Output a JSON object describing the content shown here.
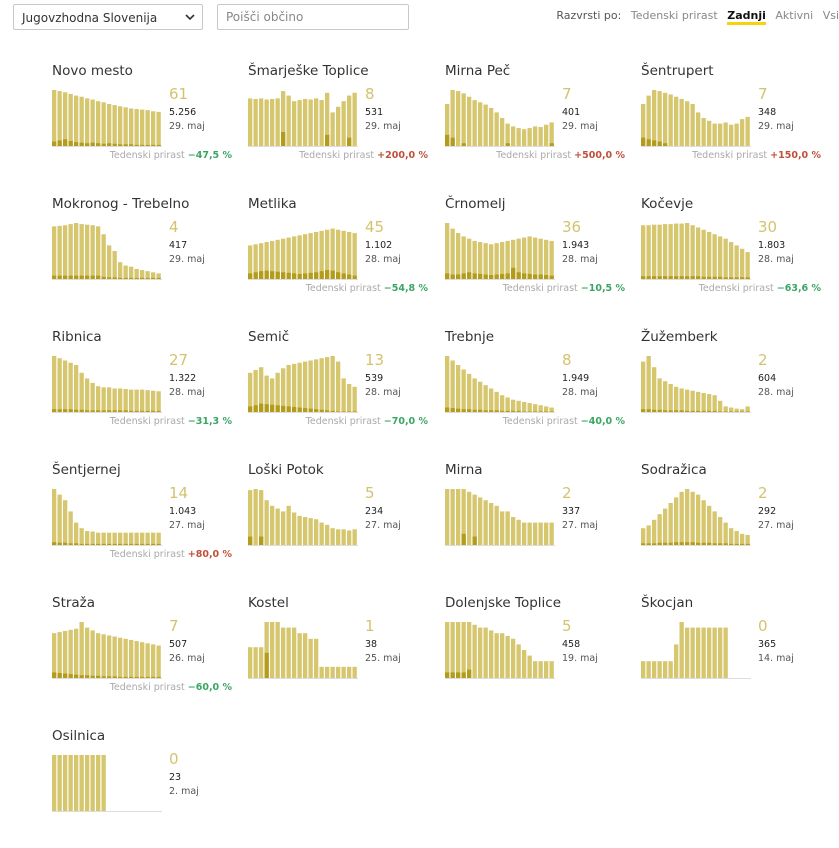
{
  "controls": {
    "region": "Jugovzhodna Slovenija",
    "search_placeholder": "Poišči občino",
    "sort_label": "Razvrsti po:",
    "sort_options": [
      "Tedenski prirast",
      "Zadnji",
      "Aktivni",
      "Vsi"
    ],
    "sort_active": "Zadnji"
  },
  "colors": {
    "bar": "#d6c66e",
    "bar_dark": "#b39c1a",
    "up": "#c0503a",
    "down": "#3aa663",
    "accent": "#f5d40f"
  },
  "growth_label": "Tedenski prirast",
  "municipalities": [
    {
      "name": "Novo mesto",
      "active": "61",
      "total": "5.256",
      "date": "29. maj",
      "growth": "−47,5 %",
      "trend": "down",
      "bars": [
        100,
        98,
        96,
        93,
        90,
        88,
        85,
        83,
        80,
        78,
        75,
        73,
        71,
        69,
        67,
        66,
        65,
        64,
        62,
        61
      ],
      "dark": [
        8,
        10,
        12,
        9,
        7,
        6,
        5,
        6,
        5,
        4,
        5,
        4,
        3,
        3,
        3,
        2,
        2,
        2,
        2,
        2
      ]
    },
    {
      "name": "Šmarješke Toplice",
      "active": "8",
      "total": "531",
      "date": "29. maj",
      "growth": "+200,0 %",
      "trend": "up",
      "bars": [
        85,
        84,
        85,
        83,
        84,
        85,
        98,
        90,
        80,
        82,
        84,
        83,
        85,
        82,
        95,
        60,
        70,
        80,
        90,
        95
      ],
      "dark": [
        0,
        0,
        0,
        0,
        0,
        0,
        25,
        0,
        0,
        0,
        0,
        0,
        0,
        0,
        20,
        0,
        0,
        0,
        15,
        0
      ]
    },
    {
      "name": "Mirna Peč",
      "active": "7",
      "total": "401",
      "date": "29. maj",
      "growth": "+500,0 %",
      "trend": "up",
      "bars": [
        75,
        100,
        98,
        94,
        88,
        82,
        78,
        74,
        68,
        60,
        50,
        40,
        35,
        32,
        30,
        32,
        35,
        34,
        38,
        42
      ],
      "dark": [
        20,
        15,
        0,
        5,
        0,
        0,
        0,
        0,
        0,
        0,
        0,
        5,
        0,
        0,
        0,
        0,
        0,
        0,
        0,
        5
      ]
    },
    {
      "name": "Šentrupert",
      "active": "7",
      "total": "348",
      "date": "29. maj",
      "growth": "+150,0 %",
      "trend": "up",
      "bars": [
        75,
        90,
        100,
        98,
        95,
        92,
        88,
        84,
        80,
        75,
        60,
        50,
        45,
        40,
        40,
        42,
        38,
        40,
        48,
        52
      ],
      "dark": [
        15,
        12,
        10,
        8,
        5,
        0,
        0,
        0,
        0,
        0,
        0,
        0,
        0,
        0,
        0,
        0,
        0,
        0,
        0,
        0
      ]
    },
    {
      "name": "Mokronog - Trebelno",
      "active": "4",
      "total": "417",
      "date": "29. maj",
      "growth": "",
      "trend": "",
      "bars": [
        94,
        95,
        96,
        98,
        100,
        98,
        97,
        96,
        94,
        80,
        60,
        50,
        30,
        24,
        22,
        18,
        16,
        14,
        12,
        10
      ],
      "dark": [
        6,
        6,
        6,
        6,
        6,
        6,
        6,
        6,
        6,
        4,
        3,
        3,
        2,
        2,
        2,
        2,
        2,
        2,
        2,
        2
      ]
    },
    {
      "name": "Metlika",
      "active": "45",
      "total": "1.102",
      "date": "28. maj",
      "growth": "−54,8 %",
      "trend": "down",
      "bars": [
        60,
        62,
        64,
        66,
        68,
        70,
        72,
        74,
        76,
        78,
        80,
        82,
        84,
        86,
        88,
        90,
        88,
        86,
        84,
        82
      ],
      "dark": [
        10,
        12,
        14,
        15,
        14,
        13,
        12,
        11,
        10,
        9,
        10,
        11,
        12,
        14,
        16,
        15,
        12,
        10,
        8,
        6
      ]
    },
    {
      "name": "Črnomelj",
      "active": "36",
      "total": "1.943",
      "date": "28. maj",
      "growth": "−10,5 %",
      "trend": "down",
      "bars": [
        100,
        90,
        82,
        76,
        72,
        68,
        66,
        64,
        62,
        64,
        66,
        68,
        70,
        72,
        74,
        76,
        74,
        72,
        70,
        68
      ],
      "dark": [
        10,
        8,
        8,
        10,
        12,
        10,
        9,
        8,
        7,
        8,
        9,
        10,
        20,
        12,
        10,
        9,
        8,
        8,
        7,
        6
      ]
    },
    {
      "name": "Kočevje",
      "active": "30",
      "total": "1.803",
      "date": "28. maj",
      "growth": "−63,6 %",
      "trend": "down",
      "bars": [
        96,
        96,
        97,
        97,
        98,
        98,
        99,
        99,
        100,
        96,
        92,
        88,
        84,
        80,
        76,
        72,
        66,
        60,
        54,
        48
      ],
      "dark": [
        5,
        5,
        5,
        5,
        5,
        5,
        5,
        5,
        5,
        5,
        5,
        4,
        4,
        4,
        4,
        3,
        3,
        3,
        3,
        3
      ]
    },
    {
      "name": "Ribnica",
      "active": "27",
      "total": "1.322",
      "date": "28. maj",
      "growth": "−31,3 %",
      "trend": "down",
      "bars": [
        100,
        96,
        92,
        88,
        84,
        70,
        60,
        52,
        46,
        44,
        44,
        42,
        42,
        41,
        40,
        40,
        40,
        39,
        38,
        37
      ],
      "dark": [
        5,
        5,
        5,
        5,
        4,
        4,
        3,
        3,
        3,
        3,
        3,
        3,
        3,
        3,
        2,
        2,
        2,
        2,
        2,
        2
      ]
    },
    {
      "name": "Semič",
      "active": "13",
      "total": "539",
      "date": "28. maj",
      "growth": "−70,0 %",
      "trend": "down",
      "bars": [
        70,
        75,
        80,
        65,
        60,
        70,
        78,
        84,
        86,
        88,
        90,
        92,
        94,
        96,
        98,
        100,
        90,
        60,
        50,
        45
      ],
      "dark": [
        10,
        12,
        15,
        14,
        13,
        12,
        11,
        10,
        9,
        8,
        7,
        6,
        5,
        4,
        3,
        2,
        1,
        1,
        1,
        1
      ]
    },
    {
      "name": "Trebnje",
      "active": "8",
      "total": "1.949",
      "date": "28. maj",
      "growth": "−40,0 %",
      "trend": "down",
      "bars": [
        100,
        92,
        84,
        76,
        68,
        60,
        54,
        48,
        42,
        36,
        30,
        26,
        22,
        20,
        18,
        16,
        14,
        12,
        10,
        8
      ],
      "dark": [
        8,
        7,
        6,
        5,
        5,
        4,
        4,
        3,
        3,
        3,
        2,
        2,
        2,
        2,
        1,
        1,
        1,
        1,
        1,
        1
      ]
    },
    {
      "name": "Žužemberk",
      "active": "2",
      "total": "604",
      "date": "28. maj",
      "growth": "",
      "trend": "",
      "bars": [
        90,
        100,
        80,
        60,
        55,
        50,
        45,
        42,
        40,
        38,
        36,
        34,
        32,
        30,
        20,
        10,
        8,
        6,
        5,
        10
      ],
      "dark": [
        5,
        5,
        4,
        4,
        3,
        3,
        3,
        3,
        2,
        2,
        2,
        2,
        2,
        2,
        1,
        1,
        1,
        1,
        1,
        1
      ]
    },
    {
      "name": "Šentjernej",
      "active": "14",
      "total": "1.043",
      "date": "27. maj",
      "growth": "+80,0 %",
      "trend": "up",
      "bars": [
        100,
        90,
        80,
        60,
        40,
        30,
        25,
        24,
        22,
        22,
        22,
        22,
        22,
        22,
        22,
        22,
        22,
        22,
        22,
        22
      ],
      "dark": [
        5,
        4,
        4,
        3,
        3,
        2,
        2,
        2,
        2,
        2,
        2,
        2,
        2,
        2,
        2,
        2,
        2,
        2,
        2,
        2
      ]
    },
    {
      "name": "Loški Potok",
      "active": "5",
      "total": "234",
      "date": "27. maj",
      "growth": "",
      "trend": "",
      "bars": [
        98,
        100,
        98,
        80,
        70,
        65,
        60,
        70,
        58,
        52,
        50,
        48,
        46,
        40,
        36,
        30,
        28,
        28,
        26,
        28
      ],
      "dark": [
        15,
        0,
        15,
        0,
        0,
        0,
        0,
        0,
        0,
        0,
        0,
        0,
        0,
        0,
        0,
        0,
        0,
        0,
        0,
        0
      ]
    },
    {
      "name": "Mirna",
      "active": "2",
      "total": "337",
      "date": "27. maj",
      "growth": "",
      "trend": "",
      "bars": [
        100,
        100,
        100,
        100,
        95,
        90,
        85,
        80,
        75,
        70,
        60,
        60,
        50,
        45,
        40,
        40,
        40,
        40,
        40,
        40
      ],
      "dark": [
        0,
        0,
        0,
        20,
        0,
        15,
        0,
        0,
        0,
        0,
        0,
        0,
        0,
        0,
        0,
        0,
        0,
        0,
        0,
        0
      ]
    },
    {
      "name": "Sodražica",
      "active": "2",
      "total": "292",
      "date": "27. maj",
      "growth": "",
      "trend": "",
      "bars": [
        30,
        35,
        45,
        55,
        65,
        75,
        85,
        95,
        100,
        95,
        90,
        80,
        70,
        60,
        50,
        40,
        30,
        25,
        20,
        18
      ],
      "dark": [
        3,
        3,
        3,
        4,
        4,
        4,
        5,
        5,
        5,
        5,
        4,
        4,
        4,
        3,
        3,
        3,
        2,
        2,
        2,
        2
      ]
    },
    {
      "name": "Straža",
      "active": "7",
      "total": "507",
      "date": "26. maj",
      "growth": "−60,0 %",
      "trend": "down",
      "bars": [
        80,
        82,
        84,
        86,
        88,
        100,
        90,
        85,
        80,
        78,
        76,
        74,
        72,
        70,
        68,
        66,
        64,
        62,
        60,
        58
      ],
      "dark": [
        10,
        9,
        8,
        7,
        6,
        5,
        5,
        4,
        4,
        3,
        3,
        3,
        2,
        2,
        2,
        2,
        2,
        2,
        2,
        2
      ]
    },
    {
      "name": "Kostel",
      "active": "1",
      "total": "38",
      "date": "25. maj",
      "growth": "",
      "trend": "",
      "bars": [
        55,
        55,
        55,
        100,
        100,
        100,
        90,
        90,
        90,
        80,
        80,
        70,
        70,
        20,
        20,
        20,
        20,
        20,
        20,
        20
      ],
      "dark": [
        0,
        0,
        0,
        45,
        0,
        0,
        0,
        0,
        0,
        0,
        0,
        0,
        0,
        0,
        0,
        0,
        0,
        0,
        0,
        0
      ]
    },
    {
      "name": "Dolenjske Toplice",
      "active": "5",
      "total": "458",
      "date": "19. maj",
      "growth": "",
      "trend": "",
      "bars": [
        100,
        100,
        100,
        100,
        100,
        95,
        90,
        90,
        85,
        80,
        80,
        75,
        70,
        60,
        50,
        40,
        30,
        30,
        30,
        30
      ],
      "dark": [
        10,
        10,
        10,
        10,
        15,
        0,
        0,
        0,
        0,
        0,
        0,
        0,
        0,
        0,
        0,
        0,
        0,
        0,
        0,
        0
      ]
    },
    {
      "name": "Škocjan",
      "active": "0",
      "total": "365",
      "date": "14. maj",
      "growth": "",
      "trend": "",
      "bars": [
        30,
        30,
        30,
        30,
        30,
        30,
        60,
        100,
        90,
        90,
        90,
        90,
        90,
        90,
        90,
        90,
        0,
        0,
        0,
        0
      ],
      "dark": [
        0,
        0,
        0,
        0,
        0,
        0,
        0,
        0,
        0,
        0,
        0,
        0,
        0,
        0,
        0,
        0,
        0,
        0,
        0,
        0
      ]
    },
    {
      "name": "Osilnica",
      "active": "0",
      "total": "23",
      "date": "2. maj",
      "growth": "",
      "trend": "",
      "bars": [
        100,
        100,
        100,
        100,
        100,
        100,
        100,
        100,
        100,
        100,
        0,
        0,
        0,
        0,
        0,
        0,
        0,
        0,
        0,
        0
      ],
      "dark": [
        0,
        0,
        0,
        0,
        0,
        0,
        0,
        0,
        0,
        0,
        0,
        0,
        0,
        0,
        0,
        0,
        0,
        0,
        0,
        0
      ]
    }
  ]
}
